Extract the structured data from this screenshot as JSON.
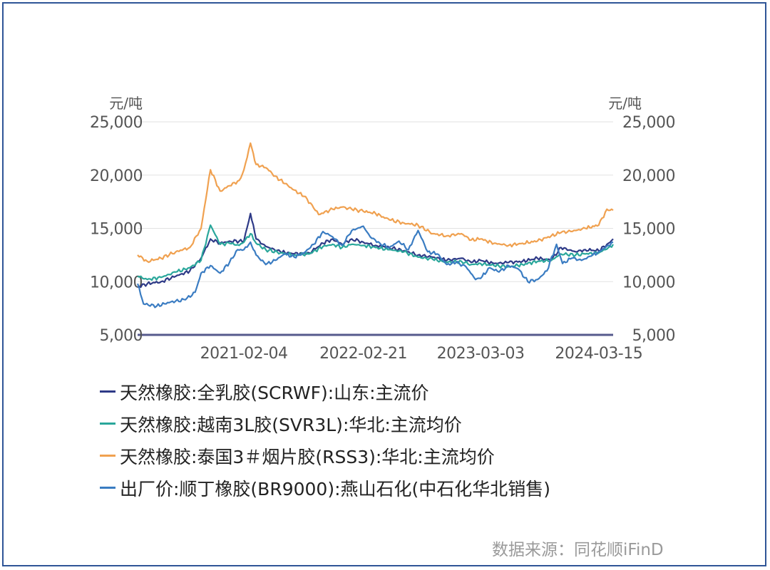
{
  "chart_data": {
    "type": "line",
    "y_unit_left": "元/吨",
    "y_unit_right": "元/吨",
    "ylim": [
      5000,
      25000
    ],
    "yticks": [
      5000,
      10000,
      15000,
      20000,
      25000
    ],
    "ytick_labels": [
      "5,000",
      "10,000",
      "15,000",
      "20,000",
      "25,000"
    ],
    "xlim": [
      "2020-03-01",
      "2024-04-30"
    ],
    "xticks": [
      "2021-02-04",
      "2022-02-21",
      "2023-03-03",
      "2024-03-15"
    ],
    "grid": "horizontal",
    "legend_position": "bottom",
    "series": [
      {
        "name": "天然橡胶:全乳胶(SCRWF):山东:主流价",
        "color": "#2e3a87",
        "points": [
          [
            "2020-03-01",
            9500
          ],
          [
            "2020-04-01",
            9800
          ],
          [
            "2020-05-15",
            10000
          ],
          [
            "2020-07-01",
            10500
          ],
          [
            "2020-08-15",
            11000
          ],
          [
            "2020-09-20",
            12200
          ],
          [
            "2020-10-20",
            14000
          ],
          [
            "2020-11-20",
            13600
          ],
          [
            "2020-12-20",
            13800
          ],
          [
            "2021-01-20",
            13800
          ],
          [
            "2021-02-04",
            13800
          ],
          [
            "2021-02-25",
            16400
          ],
          [
            "2021-03-15",
            14000
          ],
          [
            "2021-04-15",
            13300
          ],
          [
            "2021-06-01",
            12800
          ],
          [
            "2021-07-15",
            12600
          ],
          [
            "2021-09-01",
            12700
          ],
          [
            "2021-10-15",
            13600
          ],
          [
            "2021-11-15",
            14000
          ],
          [
            "2021-12-15",
            13500
          ],
          [
            "2022-01-15",
            14000
          ],
          [
            "2022-02-21",
            13700
          ],
          [
            "2022-04-01",
            13400
          ],
          [
            "2022-05-15",
            13200
          ],
          [
            "2022-07-01",
            12900
          ],
          [
            "2022-08-15",
            12500
          ],
          [
            "2022-10-01",
            12300
          ],
          [
            "2022-11-15",
            12000
          ],
          [
            "2023-01-01",
            12200
          ],
          [
            "2023-02-01",
            11800
          ],
          [
            "2023-03-03",
            12000
          ],
          [
            "2023-04-15",
            11700
          ],
          [
            "2023-06-01",
            11800
          ],
          [
            "2023-07-15",
            11900
          ],
          [
            "2023-09-01",
            12200
          ],
          [
            "2023-10-15",
            12000
          ],
          [
            "2023-11-15",
            13200
          ],
          [
            "2024-01-01",
            12800
          ],
          [
            "2024-02-01",
            13000
          ],
          [
            "2024-03-15",
            12900
          ],
          [
            "2024-04-15",
            13600
          ],
          [
            "2024-04-30",
            14000
          ]
        ]
      },
      {
        "name": "天然橡胶:越南3L胶(SVR3L):华北:主流均价",
        "color": "#2aa79b",
        "points": [
          [
            "2020-03-01",
            10500
          ],
          [
            "2020-04-01",
            10200
          ],
          [
            "2020-05-15",
            10400
          ],
          [
            "2020-07-01",
            10900
          ],
          [
            "2020-08-15",
            11300
          ],
          [
            "2020-09-20",
            12000
          ],
          [
            "2020-10-20",
            15300
          ],
          [
            "2020-11-20",
            13500
          ],
          [
            "2020-12-20",
            13600
          ],
          [
            "2021-01-20",
            13400
          ],
          [
            "2021-02-04",
            13700
          ],
          [
            "2021-02-25",
            14500
          ],
          [
            "2021-03-15",
            13600
          ],
          [
            "2021-04-15",
            13000
          ],
          [
            "2021-06-01",
            12700
          ],
          [
            "2021-07-15",
            12500
          ],
          [
            "2021-09-01",
            12600
          ],
          [
            "2021-10-15",
            13300
          ],
          [
            "2021-11-15",
            13500
          ],
          [
            "2021-12-15",
            13200
          ],
          [
            "2022-01-15",
            13500
          ],
          [
            "2022-02-21",
            13400
          ],
          [
            "2022-04-01",
            13200
          ],
          [
            "2022-05-15",
            13000
          ],
          [
            "2022-07-01",
            12800
          ],
          [
            "2022-08-15",
            12300
          ],
          [
            "2022-10-01",
            12100
          ],
          [
            "2022-11-15",
            11800
          ],
          [
            "2023-01-01",
            11900
          ],
          [
            "2023-02-01",
            11600
          ],
          [
            "2023-03-03",
            11700
          ],
          [
            "2023-04-15",
            11500
          ],
          [
            "2023-06-01",
            11400
          ],
          [
            "2023-07-15",
            11600
          ],
          [
            "2023-09-01",
            11900
          ],
          [
            "2023-10-15",
            12000
          ],
          [
            "2023-11-15",
            12600
          ],
          [
            "2024-01-01",
            12500
          ],
          [
            "2024-02-01",
            12600
          ],
          [
            "2024-03-15",
            12700
          ],
          [
            "2024-04-15",
            13200
          ],
          [
            "2024-04-30",
            13500
          ]
        ]
      },
      {
        "name": "天然橡胶:泰国3＃烟片胶(RSS3):华北:主流均价",
        "color": "#f0a150",
        "points": [
          [
            "2020-03-01",
            12500
          ],
          [
            "2020-04-01",
            11900
          ],
          [
            "2020-05-15",
            12200
          ],
          [
            "2020-07-01",
            12800
          ],
          [
            "2020-08-15",
            13200
          ],
          [
            "2020-09-20",
            15000
          ],
          [
            "2020-10-20",
            20500
          ],
          [
            "2020-11-20",
            18500
          ],
          [
            "2020-12-20",
            19000
          ],
          [
            "2021-01-20",
            19500
          ],
          [
            "2021-02-04",
            20500
          ],
          [
            "2021-02-25",
            23000
          ],
          [
            "2021-03-15",
            21000
          ],
          [
            "2021-04-15",
            20700
          ],
          [
            "2021-05-15",
            19900
          ],
          [
            "2021-06-15",
            19200
          ],
          [
            "2021-07-15",
            18600
          ],
          [
            "2021-08-15",
            18000
          ],
          [
            "2021-09-10",
            17200
          ],
          [
            "2021-10-01",
            16300
          ],
          [
            "2021-11-15",
            16800
          ],
          [
            "2021-12-15",
            17000
          ],
          [
            "2022-01-15",
            16800
          ],
          [
            "2022-02-21",
            16600
          ],
          [
            "2022-04-01",
            16400
          ],
          [
            "2022-05-15",
            15800
          ],
          [
            "2022-07-01",
            15500
          ],
          [
            "2022-08-15",
            15300
          ],
          [
            "2022-10-01",
            14500
          ],
          [
            "2022-11-15",
            14300
          ],
          [
            "2023-01-01",
            14500
          ],
          [
            "2023-02-01",
            13900
          ],
          [
            "2023-03-03",
            14000
          ],
          [
            "2023-04-15",
            13600
          ],
          [
            "2023-06-01",
            13400
          ],
          [
            "2023-07-15",
            13600
          ],
          [
            "2023-09-01",
            13800
          ],
          [
            "2023-10-15",
            14300
          ],
          [
            "2023-11-15",
            14600
          ],
          [
            "2024-01-01",
            14800
          ],
          [
            "2024-02-01",
            15000
          ],
          [
            "2024-03-15",
            15300
          ],
          [
            "2024-04-10",
            16800
          ],
          [
            "2024-04-30",
            16700
          ]
        ]
      },
      {
        "name": "出厂价:顺丁橡胶(BR9000):燕山石化(中石化华北销售)",
        "color": "#3a7cc2",
        "points": [
          [
            "2020-03-01",
            9800
          ],
          [
            "2020-03-20",
            7900
          ],
          [
            "2020-05-01",
            7700
          ],
          [
            "2020-06-15",
            8100
          ],
          [
            "2020-08-01",
            8300
          ],
          [
            "2020-09-01",
            9000
          ],
          [
            "2020-09-20",
            10800
          ],
          [
            "2020-10-20",
            11500
          ],
          [
            "2020-11-20",
            10800
          ],
          [
            "2020-12-20",
            11800
          ],
          [
            "2021-01-15",
            13000
          ],
          [
            "2021-02-04",
            13000
          ],
          [
            "2021-02-25",
            13700
          ],
          [
            "2021-03-15",
            12500
          ],
          [
            "2021-04-15",
            11600
          ],
          [
            "2021-05-15",
            12000
          ],
          [
            "2021-06-15",
            12600
          ],
          [
            "2021-07-15",
            12300
          ],
          [
            "2021-08-15",
            12700
          ],
          [
            "2021-09-15",
            13500
          ],
          [
            "2021-10-15",
            14700
          ],
          [
            "2021-11-15",
            14200
          ],
          [
            "2021-12-15",
            13400
          ],
          [
            "2022-01-15",
            14800
          ],
          [
            "2022-02-21",
            15200
          ],
          [
            "2022-03-15",
            14200
          ],
          [
            "2022-04-15",
            13600
          ],
          [
            "2022-05-15",
            13200
          ],
          [
            "2022-06-15",
            13800
          ],
          [
            "2022-07-15",
            13000
          ],
          [
            "2022-08-15",
            14800
          ],
          [
            "2022-09-15",
            12800
          ],
          [
            "2022-10-15",
            12600
          ],
          [
            "2022-11-15",
            11600
          ],
          [
            "2022-12-15",
            11800
          ],
          [
            "2023-01-15",
            11400
          ],
          [
            "2023-02-15",
            10200
          ],
          [
            "2023-03-03",
            10300
          ],
          [
            "2023-04-01",
            11300
          ],
          [
            "2023-05-01",
            10900
          ],
          [
            "2023-06-01",
            11500
          ],
          [
            "2023-07-01",
            11200
          ],
          [
            "2023-08-01",
            10000
          ],
          [
            "2023-09-01",
            10200
          ],
          [
            "2023-10-01",
            11000
          ],
          [
            "2023-11-01",
            13500
          ],
          [
            "2023-11-20",
            11700
          ],
          [
            "2023-12-20",
            12200
          ],
          [
            "2024-01-20",
            12000
          ],
          [
            "2024-02-20",
            12400
          ],
          [
            "2024-03-15",
            12800
          ],
          [
            "2024-04-15",
            13400
          ],
          [
            "2024-04-30",
            13700
          ]
        ]
      }
    ]
  },
  "source": "数据来源：同花顺iFinD"
}
